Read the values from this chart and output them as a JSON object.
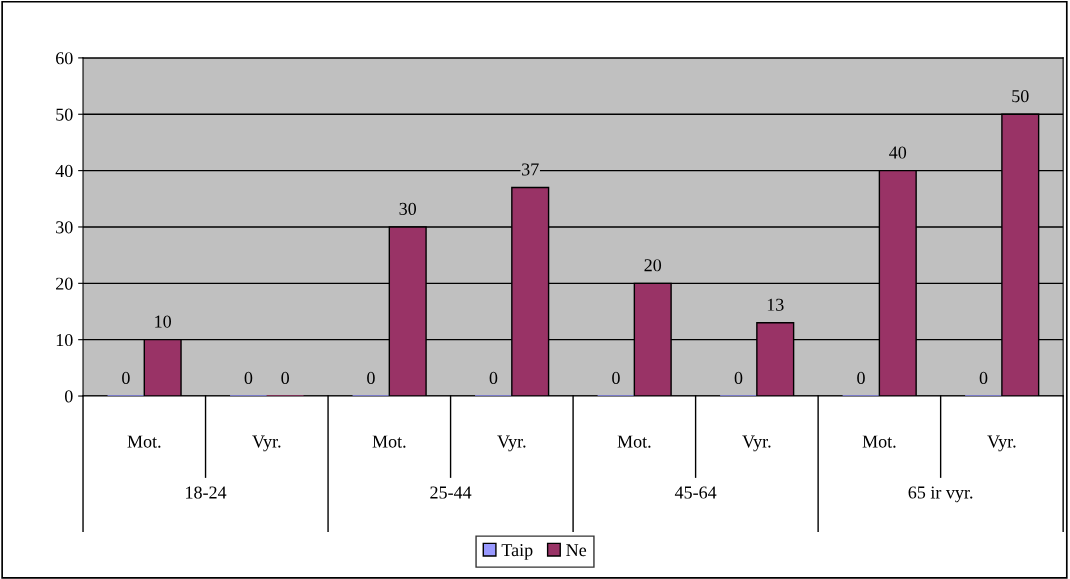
{
  "chart_data": {
    "type": "bar",
    "categories": [
      "Mot.",
      "Vyr.",
      "Mot.",
      "Vyr.",
      "Mot.",
      "Vyr.",
      "Mot.",
      "Vyr."
    ],
    "annotations": [
      "18-24",
      "25-44",
      "45-64",
      "65 ir vyr."
    ],
    "series": [
      {
        "name": "Taip",
        "color": "#9999ff",
        "values": [
          0,
          0,
          0,
          0,
          0,
          0,
          0,
          0
        ]
      },
      {
        "name": "Ne",
        "color": "#993366",
        "values": [
          10,
          0,
          30,
          37,
          20,
          13,
          40,
          50
        ]
      }
    ],
    "ylim": [
      0,
      60
    ],
    "yticks": [
      0,
      10,
      20,
      30,
      40,
      50,
      60
    ],
    "grid": "y",
    "legend": "bottom",
    "data_labels": true
  }
}
